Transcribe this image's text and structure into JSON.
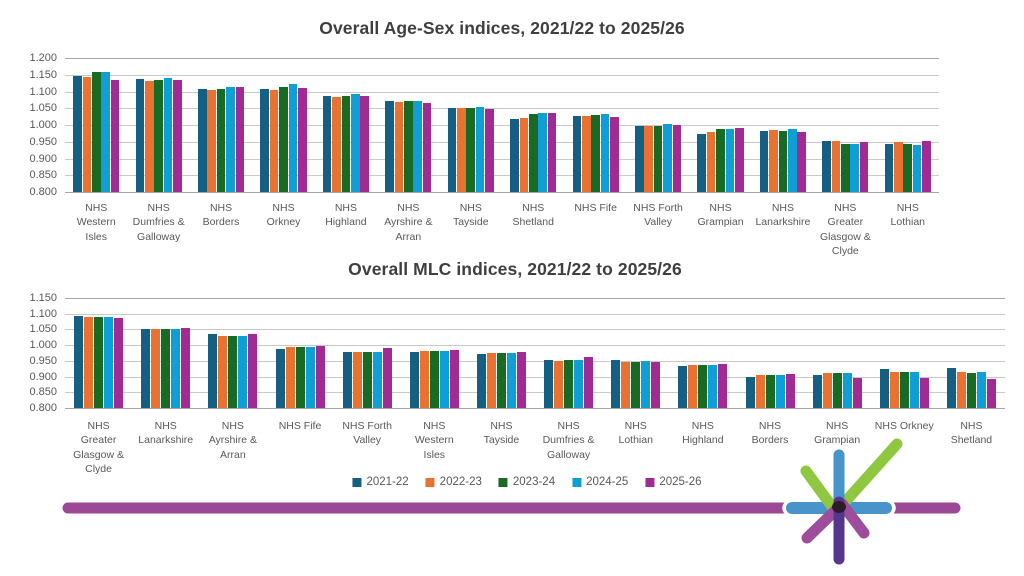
{
  "page": {
    "background": "#FFFFFF"
  },
  "legend": {
    "items": [
      {
        "label": "2021-22",
        "color": "#156082"
      },
      {
        "label": "2022-23",
        "color": "#E97132"
      },
      {
        "label": "2023-24",
        "color": "#196B24"
      },
      {
        "label": "2024-25",
        "color": "#0F9ED5"
      },
      {
        "label": "2025-26",
        "color": "#A02B93"
      }
    ]
  },
  "chart_data": [
    {
      "type": "bar",
      "title": "Overall Age-Sex indices, 2021/22 to 2025/26",
      "xlabel": "",
      "ylabel": "",
      "ylim": [
        0.8,
        1.2
      ],
      "ytick_step": 0.05,
      "yticks": [
        "1.200",
        "1.150",
        "1.100",
        "1.050",
        "1.000",
        "0.950",
        "0.900",
        "0.850",
        "0.800"
      ],
      "grid": true,
      "legend_position": "shared-bottom",
      "categories": [
        "NHS Western Isles",
        "NHS Dumfries & Galloway",
        "NHS Borders",
        "NHS Orkney",
        "NHS Highland",
        "NHS Ayrshire & Arran",
        "NHS Tayside",
        "NHS Shetland",
        "NHS Fife",
        "NHS Forth Valley",
        "NHS Grampian",
        "NHS Lanarkshire",
        "NHS Greater Glasgow & Clyde",
        "NHS Lothian"
      ],
      "series": [
        {
          "name": "2021-22",
          "color": "#156082",
          "values": [
            1.147,
            1.137,
            1.107,
            1.106,
            1.088,
            1.071,
            1.052,
            1.018,
            1.027,
            0.998,
            0.973,
            0.983,
            0.951,
            0.944
          ]
        },
        {
          "name": "2022-23",
          "color": "#E97132",
          "values": [
            1.143,
            1.13,
            1.103,
            1.103,
            1.083,
            1.069,
            1.051,
            1.022,
            1.028,
            0.996,
            0.98,
            0.985,
            0.952,
            0.948
          ]
        },
        {
          "name": "2023-24",
          "color": "#196B24",
          "values": [
            1.157,
            1.135,
            1.107,
            1.113,
            1.088,
            1.072,
            1.052,
            1.032,
            1.03,
            0.998,
            0.987,
            0.982,
            0.944,
            0.944
          ]
        },
        {
          "name": "2024-25",
          "color": "#0F9ED5",
          "values": [
            1.158,
            1.14,
            1.112,
            1.122,
            1.093,
            1.073,
            1.054,
            1.036,
            1.032,
            1.002,
            0.989,
            0.987,
            0.942,
            0.941
          ]
        },
        {
          "name": "2025-26",
          "color": "#A02B93",
          "values": [
            1.135,
            1.134,
            1.113,
            1.11,
            1.086,
            1.067,
            1.047,
            1.035,
            1.025,
            0.999,
            0.991,
            0.98,
            0.948,
            0.951
          ]
        }
      ]
    },
    {
      "type": "bar",
      "title": "Overall MLC indices, 2021/22 to 2025/26",
      "xlabel": "",
      "ylabel": "",
      "ylim": [
        0.8,
        1.15
      ],
      "ytick_step": 0.05,
      "yticks": [
        "1.150",
        "1.100",
        "1.050",
        "1.000",
        "0.950",
        "0.900",
        "0.850",
        "0.800"
      ],
      "grid": true,
      "legend_position": "shared-bottom",
      "categories": [
        "NHS Greater Glasgow & Clyde",
        "NHS Lanarkshire",
        "NHS Ayrshire & Arran",
        "NHS Fife",
        "NHS Forth Valley",
        "NHS Western Isles",
        "NHS Tayside",
        "NHS Dumfries & Galloway",
        "NHS Lothian",
        "NHS Highland",
        "NHS Borders",
        "NHS Grampian",
        "NHS Orkney",
        "NHS Shetland"
      ],
      "series": [
        {
          "name": "2021-22",
          "color": "#156082",
          "values": [
            1.092,
            1.052,
            1.034,
            0.988,
            0.977,
            0.978,
            0.973,
            0.954,
            0.954,
            0.933,
            0.898,
            0.906,
            0.925,
            0.927
          ]
        },
        {
          "name": "2022-23",
          "color": "#E97132",
          "values": [
            1.091,
            1.052,
            1.029,
            0.993,
            0.979,
            0.98,
            0.975,
            0.951,
            0.946,
            0.936,
            0.905,
            0.911,
            0.914,
            0.913
          ]
        },
        {
          "name": "2023-24",
          "color": "#196B24",
          "values": [
            1.09,
            1.052,
            1.028,
            0.993,
            0.979,
            0.982,
            0.974,
            0.953,
            0.947,
            0.937,
            0.906,
            0.91,
            0.915,
            0.912
          ]
        },
        {
          "name": "2024-25",
          "color": "#0F9ED5",
          "values": [
            1.091,
            1.05,
            1.03,
            0.993,
            0.979,
            0.982,
            0.975,
            0.952,
            0.948,
            0.937,
            0.906,
            0.91,
            0.915,
            0.916
          ]
        },
        {
          "name": "2025-26",
          "color": "#A02B93",
          "values": [
            1.086,
            1.055,
            1.036,
            0.997,
            0.991,
            0.986,
            0.978,
            0.962,
            0.946,
            0.94,
            0.908,
            0.897,
            0.895,
            0.893
          ]
        }
      ]
    }
  ],
  "decoration": {
    "footer_line_color": "#9B4996",
    "logo_star": {
      "blue": "#4694C9",
      "green": "#8FC740",
      "magenta": "#9D4D9B",
      "dark_purple": "#55368C",
      "center": "#2B191E",
      "halo": "#FFFFFF"
    }
  }
}
